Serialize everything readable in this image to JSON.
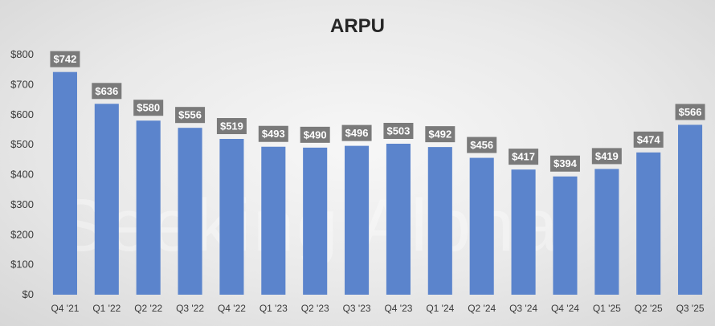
{
  "chart_data": {
    "type": "bar",
    "title": "ARPU",
    "categories": [
      "Q4 '21",
      "Q1 '22",
      "Q2 '22",
      "Q3 '22",
      "Q4 '22",
      "Q1 '23",
      "Q2 '23",
      "Q3 '23",
      "Q4 '23",
      "Q1 '24",
      "Q2 '24",
      "Q3 '24",
      "Q4 '24",
      "Q1 '25",
      "Q2 '25",
      "Q3 '25"
    ],
    "values": [
      742,
      636,
      580,
      556,
      519,
      493,
      490,
      496,
      503,
      492,
      456,
      417,
      394,
      419,
      474,
      566
    ],
    "data_labels": [
      "$742",
      "$636",
      "$580",
      "$556",
      "$519",
      "$493",
      "$490",
      "$496",
      "$503",
      "$492",
      "$456",
      "$417",
      "$394",
      "$419",
      "$474",
      "$566"
    ],
    "y_ticks": [
      "$0",
      "$100",
      "$200",
      "$300",
      "$400",
      "$500",
      "$600",
      "$700",
      "$800"
    ],
    "ylim": [
      0,
      800
    ],
    "grid": false,
    "legend": "none",
    "bar_color": "#5b84cc",
    "label_bg_color": "#7a7a7a"
  },
  "watermark": "Seeking Alpha"
}
